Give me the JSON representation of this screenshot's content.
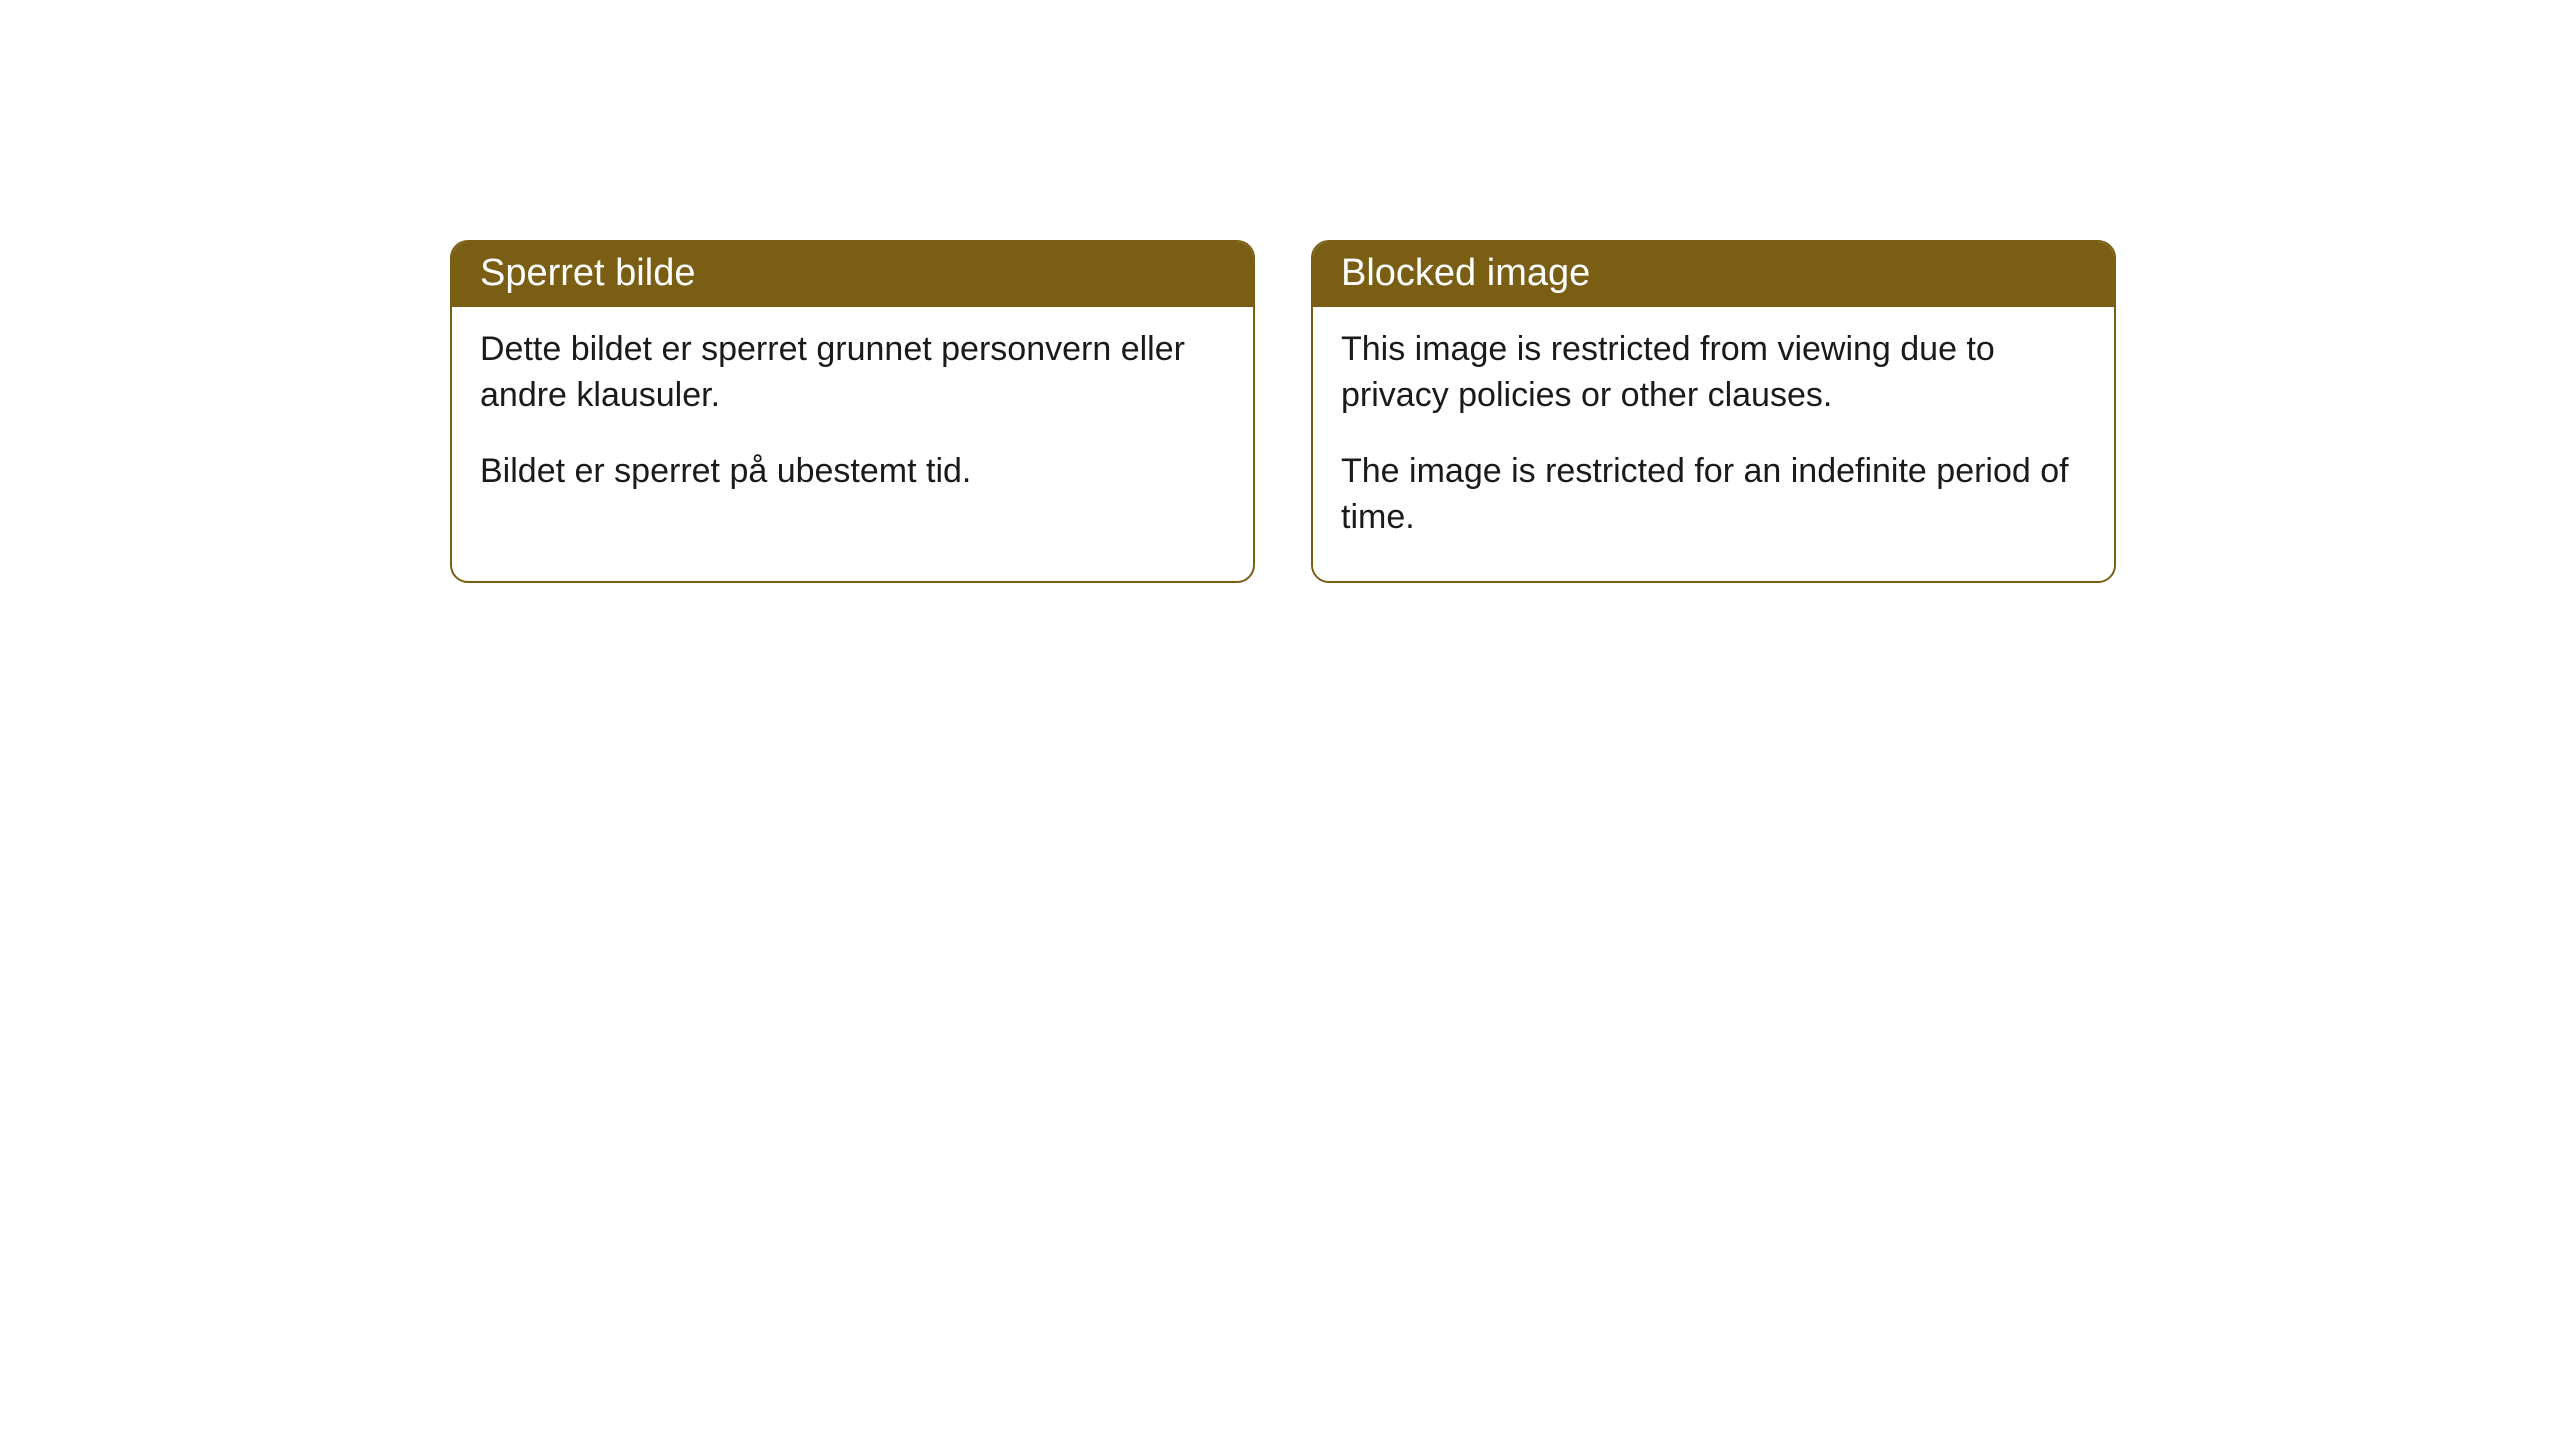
{
  "cards": [
    {
      "title": "Sperret bilde",
      "paragraph1": "Dette bildet er sperret grunnet personvern eller andre klausuler.",
      "paragraph2": "Bildet er sperret på ubestemt tid."
    },
    {
      "title": "Blocked image",
      "paragraph1": "This image is restricted from viewing due to privacy policies or other clauses.",
      "paragraph2": "The image is restricted for an indefinite period of time."
    }
  ],
  "style": {
    "header_bg": "#7a5e14",
    "header_text": "#ffffff",
    "border_color": "#7a5e14",
    "body_bg": "#ffffff",
    "body_text": "#1a1a1a",
    "border_radius": 18,
    "title_fontsize": 38,
    "body_fontsize": 34
  }
}
